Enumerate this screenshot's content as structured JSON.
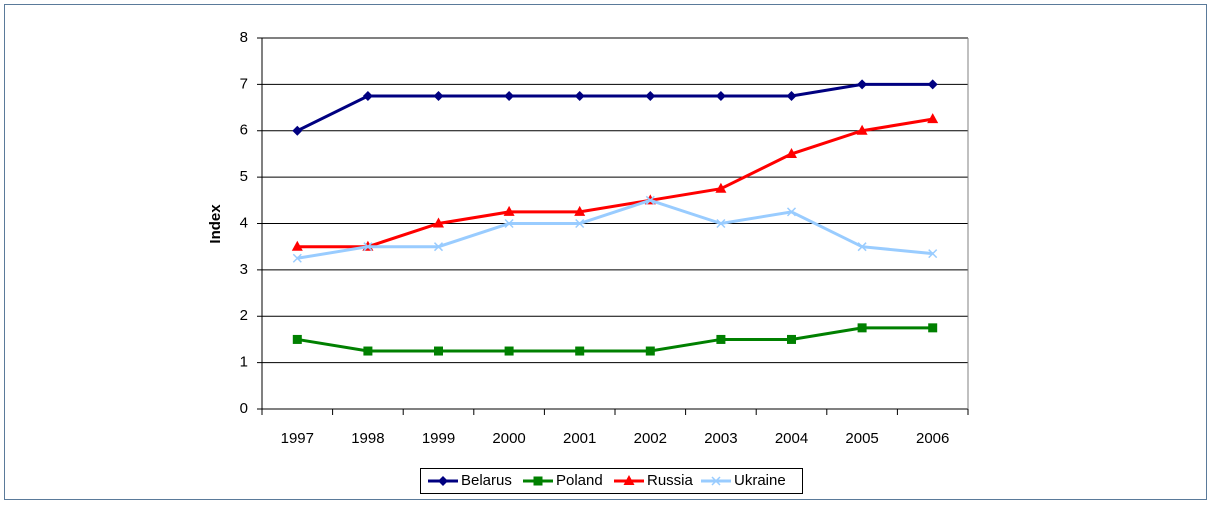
{
  "chart_data": {
    "type": "line",
    "ylabel": "Index",
    "categories": [
      "1997",
      "1998",
      "1999",
      "2000",
      "2001",
      "2002",
      "2003",
      "2004",
      "2005",
      "2006"
    ],
    "series": [
      {
        "name": "Belarus",
        "color": "#000080",
        "marker": "diamond",
        "values": [
          6,
          6.75,
          6.75,
          6.75,
          6.75,
          6.75,
          6.75,
          6.75,
          7,
          7
        ]
      },
      {
        "name": "Poland",
        "color": "#008000",
        "marker": "square",
        "values": [
          1.5,
          1.25,
          1.25,
          1.25,
          1.25,
          1.25,
          1.5,
          1.5,
          1.75,
          1.75
        ]
      },
      {
        "name": "Russia",
        "color": "#ff0000",
        "marker": "triangle",
        "values": [
          3.5,
          3.5,
          4,
          4.25,
          4.25,
          4.5,
          4.75,
          5.5,
          6,
          6.25
        ]
      },
      {
        "name": "Ukraine",
        "color": "#99ccff",
        "marker": "x",
        "values": [
          3.25,
          3.5,
          3.5,
          4,
          4,
          4.5,
          4,
          4.25,
          3.5,
          3.35
        ]
      }
    ],
    "ylim": [
      0,
      8
    ],
    "yticks": [
      0,
      1,
      2,
      3,
      4,
      5,
      6,
      7,
      8
    ],
    "grid": true,
    "legend": "bottom"
  }
}
